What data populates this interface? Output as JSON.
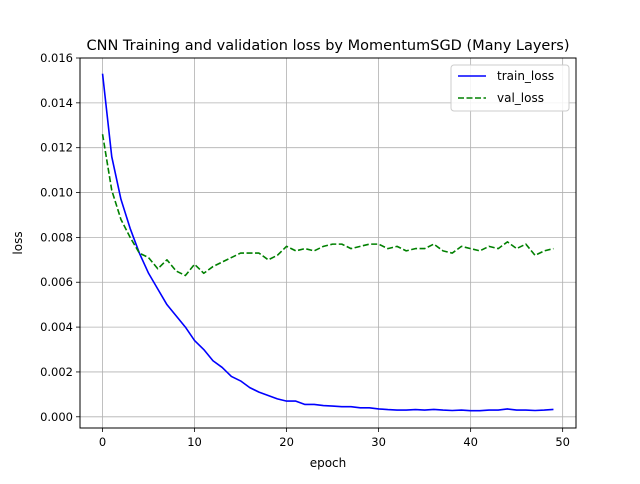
{
  "chart_data": {
    "type": "line",
    "title": "CNN Training and validation loss by MomentumSGD (Many Layers)",
    "xlabel": "epoch",
    "ylabel": "loss",
    "xlim": [
      -2.45,
      51.45
    ],
    "ylim": [
      -0.0005,
      0.016
    ],
    "xticks": [
      0,
      10,
      20,
      30,
      40,
      50
    ],
    "xtick_labels": [
      "0",
      "10",
      "20",
      "30",
      "40",
      "50"
    ],
    "yticks": [
      0.0,
      0.002,
      0.004,
      0.006,
      0.008,
      0.01,
      0.012,
      0.014,
      0.016
    ],
    "ytick_labels": [
      "0.000",
      "0.002",
      "0.004",
      "0.006",
      "0.008",
      "0.010",
      "0.012",
      "0.014",
      "0.016"
    ],
    "grid": true,
    "legend_position": "top-right",
    "x": [
      0,
      1,
      2,
      3,
      4,
      5,
      6,
      7,
      8,
      9,
      10,
      11,
      12,
      13,
      14,
      15,
      16,
      17,
      18,
      19,
      20,
      21,
      22,
      23,
      24,
      25,
      26,
      27,
      28,
      29,
      30,
      31,
      32,
      33,
      34,
      35,
      36,
      37,
      38,
      39,
      40,
      41,
      42,
      43,
      44,
      45,
      46,
      47,
      48,
      49
    ],
    "series": [
      {
        "name": "train_loss",
        "color": "#0000ff",
        "dash": "solid",
        "values": [
          0.0153,
          0.0116,
          0.0097,
          0.0084,
          0.0073,
          0.0064,
          0.0057,
          0.005,
          0.0045,
          0.004,
          0.0034,
          0.003,
          0.0025,
          0.0022,
          0.0018,
          0.0016,
          0.0013,
          0.0011,
          0.00095,
          0.0008,
          0.0007,
          0.0007,
          0.00055,
          0.00055,
          0.0005,
          0.00048,
          0.00045,
          0.00045,
          0.0004,
          0.0004,
          0.00035,
          0.00032,
          0.0003,
          0.0003,
          0.00032,
          0.0003,
          0.00033,
          0.0003,
          0.00028,
          0.0003,
          0.00027,
          0.00027,
          0.0003,
          0.0003,
          0.00035,
          0.0003,
          0.0003,
          0.00028,
          0.0003,
          0.00033
        ]
      },
      {
        "name": "val_loss",
        "color": "#008000",
        "dash": "dashed",
        "values": [
          0.0126,
          0.0101,
          0.0088,
          0.008,
          0.0073,
          0.0071,
          0.0066,
          0.007,
          0.0065,
          0.0063,
          0.0068,
          0.0064,
          0.0067,
          0.0069,
          0.0071,
          0.0073,
          0.0073,
          0.0073,
          0.007,
          0.0072,
          0.0076,
          0.0074,
          0.0075,
          0.0074,
          0.0076,
          0.0077,
          0.0077,
          0.0075,
          0.0076,
          0.0077,
          0.0077,
          0.0075,
          0.0076,
          0.0074,
          0.0075,
          0.0075,
          0.0077,
          0.0074,
          0.0073,
          0.0076,
          0.0075,
          0.0074,
          0.0076,
          0.0075,
          0.0078,
          0.0075,
          0.0077,
          0.0072,
          0.0074,
          0.0075
        ]
      }
    ]
  }
}
